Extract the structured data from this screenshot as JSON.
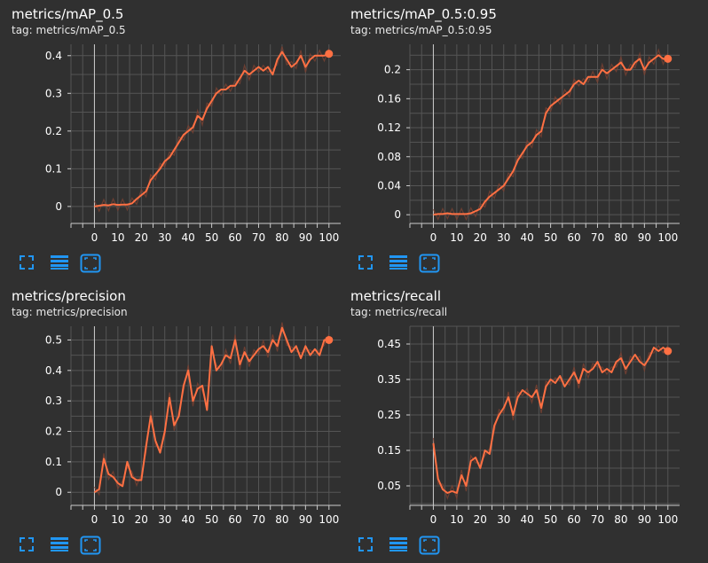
{
  "colors": {
    "background": "#303030",
    "grid": "#555555",
    "axis": "#cccccc",
    "line": "#ff7043",
    "raw": "#7a4233",
    "toolbar": "#2196f3"
  },
  "toolbar": {
    "icons": [
      "fit-domain-icon",
      "data-table-icon",
      "expand-chart-icon"
    ]
  },
  "cards": [
    {
      "title": "metrics/mAP_0.5",
      "tag": "tag: metrics/mAP_0.5",
      "chart_data": {
        "type": "line",
        "title": "metrics/mAP_0.5",
        "xlabel": "",
        "ylabel": "",
        "xlim": [
          -10,
          105
        ],
        "ylim": [
          -0.045,
          0.43
        ],
        "xticks": [
          0,
          10,
          20,
          30,
          40,
          50,
          60,
          70,
          80,
          90,
          100
        ],
        "yticks": [
          0,
          0.1,
          0.2,
          0.3,
          0.4
        ],
        "ytick_labels": [
          "0",
          "0.1",
          "0.2",
          "0.3",
          "0.4"
        ],
        "grid": true,
        "series": [
          {
            "x": [
              0,
              2,
              4,
              6,
              8,
              10,
              12,
              14,
              16,
              18,
              20,
              22,
              24,
              26,
              28,
              30,
              32,
              34,
              36,
              38,
              40,
              42,
              44,
              46,
              48,
              50,
              52,
              54,
              56,
              58,
              60,
              62,
              64,
              66,
              68,
              70,
              72,
              74,
              76,
              78,
              80,
              82,
              84,
              86,
              88,
              90,
              92,
              94,
              96,
              98,
              100
            ],
            "values": [
              0,
              0.002,
              0.004,
              0.003,
              0.006,
              0.004,
              0.005,
              0.005,
              0.008,
              0.02,
              0.03,
              0.04,
              0.07,
              0.085,
              0.1,
              0.12,
              0.13,
              0.15,
              0.17,
              0.19,
              0.2,
              0.21,
              0.24,
              0.23,
              0.26,
              0.28,
              0.3,
              0.31,
              0.31,
              0.32,
              0.32,
              0.34,
              0.36,
              0.35,
              0.36,
              0.37,
              0.36,
              0.37,
              0.35,
              0.39,
              0.41,
              0.39,
              0.37,
              0.38,
              0.4,
              0.37,
              0.39,
              0.4,
              0.4,
              0.4,
              0.405
            ]
          }
        ]
      }
    },
    {
      "title": "metrics/mAP_0.5:0.95",
      "tag": "tag: metrics/mAP_0.5:0.95",
      "chart_data": {
        "type": "line",
        "title": "metrics/mAP_0.5:0.95",
        "xlabel": "",
        "ylabel": "",
        "xlim": [
          -10,
          105
        ],
        "ylim": [
          -0.012,
          0.235
        ],
        "xticks": [
          0,
          10,
          20,
          30,
          40,
          50,
          60,
          70,
          80,
          90,
          100
        ],
        "yticks": [
          0,
          0.04,
          0.08,
          0.12,
          0.16,
          0.2
        ],
        "ytick_labels": [
          "0",
          "0.04",
          "0.08",
          "0.12",
          "0.16",
          "0.2"
        ],
        "grid": true,
        "series": [
          {
            "x": [
              0,
              2,
              4,
              6,
              8,
              10,
              12,
              14,
              16,
              18,
              20,
              22,
              24,
              26,
              28,
              30,
              32,
              34,
              36,
              38,
              40,
              42,
              44,
              46,
              48,
              50,
              52,
              54,
              56,
              58,
              60,
              62,
              64,
              66,
              68,
              70,
              72,
              74,
              76,
              78,
              80,
              82,
              84,
              86,
              88,
              90,
              92,
              94,
              96,
              98,
              100
            ],
            "values": [
              0,
              0.001,
              0.001,
              0.002,
              0.001,
              0.001,
              0.001,
              0.001,
              0.002,
              0.005,
              0.008,
              0.018,
              0.025,
              0.03,
              0.035,
              0.04,
              0.05,
              0.06,
              0.075,
              0.085,
              0.095,
              0.1,
              0.11,
              0.115,
              0.14,
              0.15,
              0.155,
              0.16,
              0.165,
              0.17,
              0.18,
              0.185,
              0.18,
              0.19,
              0.19,
              0.19,
              0.2,
              0.195,
              0.2,
              0.205,
              0.21,
              0.2,
              0.2,
              0.21,
              0.215,
              0.2,
              0.21,
              0.215,
              0.22,
              0.215,
              0.215
            ]
          }
        ]
      }
    },
    {
      "title": "metrics/precision",
      "tag": "tag: metrics/precision",
      "chart_data": {
        "type": "line",
        "title": "metrics/precision",
        "xlabel": "",
        "ylabel": "",
        "xlim": [
          -10,
          105
        ],
        "ylim": [
          -0.043,
          0.545
        ],
        "xticks": [
          0,
          10,
          20,
          30,
          40,
          50,
          60,
          70,
          80,
          90,
          100
        ],
        "yticks": [
          0,
          0.1,
          0.2,
          0.3,
          0.4,
          0.5
        ],
        "ytick_labels": [
          "0",
          "0.1",
          "0.2",
          "0.3",
          "0.4",
          "0.5"
        ],
        "grid": true,
        "series": [
          {
            "x": [
              0,
              2,
              4,
              6,
              8,
              10,
              12,
              14,
              16,
              18,
              20,
              22,
              24,
              26,
              28,
              30,
              32,
              34,
              36,
              38,
              40,
              42,
              44,
              46,
              48,
              50,
              52,
              54,
              56,
              58,
              60,
              62,
              64,
              66,
              68,
              70,
              72,
              74,
              76,
              78,
              80,
              82,
              84,
              86,
              88,
              90,
              92,
              94,
              96,
              98,
              100
            ],
            "values": [
              0,
              0.01,
              0.11,
              0.06,
              0.05,
              0.03,
              0.02,
              0.1,
              0.05,
              0.04,
              0.04,
              0.15,
              0.25,
              0.17,
              0.13,
              0.2,
              0.31,
              0.22,
              0.25,
              0.35,
              0.4,
              0.3,
              0.34,
              0.35,
              0.27,
              0.48,
              0.4,
              0.42,
              0.45,
              0.44,
              0.5,
              0.42,
              0.46,
              0.43,
              0.45,
              0.47,
              0.48,
              0.46,
              0.5,
              0.48,
              0.54,
              0.5,
              0.46,
              0.48,
              0.44,
              0.48,
              0.45,
              0.47,
              0.45,
              0.5,
              0.5
            ]
          }
        ]
      }
    },
    {
      "title": "metrics/recall",
      "tag": "tag: metrics/recall",
      "chart_data": {
        "type": "line",
        "title": "metrics/recall",
        "xlabel": "",
        "ylabel": "",
        "xlim": [
          -10,
          105
        ],
        "ylim": [
          -0.005,
          0.5
        ],
        "xticks": [
          0,
          10,
          20,
          30,
          40,
          50,
          60,
          70,
          80,
          90,
          100
        ],
        "yticks": [
          0.05,
          0.15,
          0.25,
          0.35,
          0.45
        ],
        "ytick_labels": [
          "0.05",
          "0.15",
          "0.25",
          "0.35",
          "0.45"
        ],
        "grid": true,
        "series": [
          {
            "x": [
              0,
              2,
              4,
              6,
              8,
              10,
              12,
              14,
              16,
              18,
              20,
              22,
              24,
              26,
              28,
              30,
              32,
              34,
              36,
              38,
              40,
              42,
              44,
              46,
              48,
              50,
              52,
              54,
              56,
              58,
              60,
              62,
              64,
              66,
              68,
              70,
              72,
              74,
              76,
              78,
              80,
              82,
              84,
              86,
              88,
              90,
              92,
              94,
              96,
              98,
              100
            ],
            "values": [
              0.17,
              0.07,
              0.04,
              0.03,
              0.035,
              0.03,
              0.08,
              0.05,
              0.12,
              0.13,
              0.1,
              0.15,
              0.14,
              0.22,
              0.25,
              0.27,
              0.3,
              0.25,
              0.3,
              0.32,
              0.31,
              0.3,
              0.32,
              0.27,
              0.33,
              0.35,
              0.34,
              0.36,
              0.33,
              0.35,
              0.37,
              0.34,
              0.38,
              0.37,
              0.38,
              0.4,
              0.37,
              0.38,
              0.37,
              0.4,
              0.41,
              0.38,
              0.4,
              0.42,
              0.4,
              0.39,
              0.41,
              0.44,
              0.43,
              0.44,
              0.43
            ]
          }
        ]
      }
    }
  ]
}
